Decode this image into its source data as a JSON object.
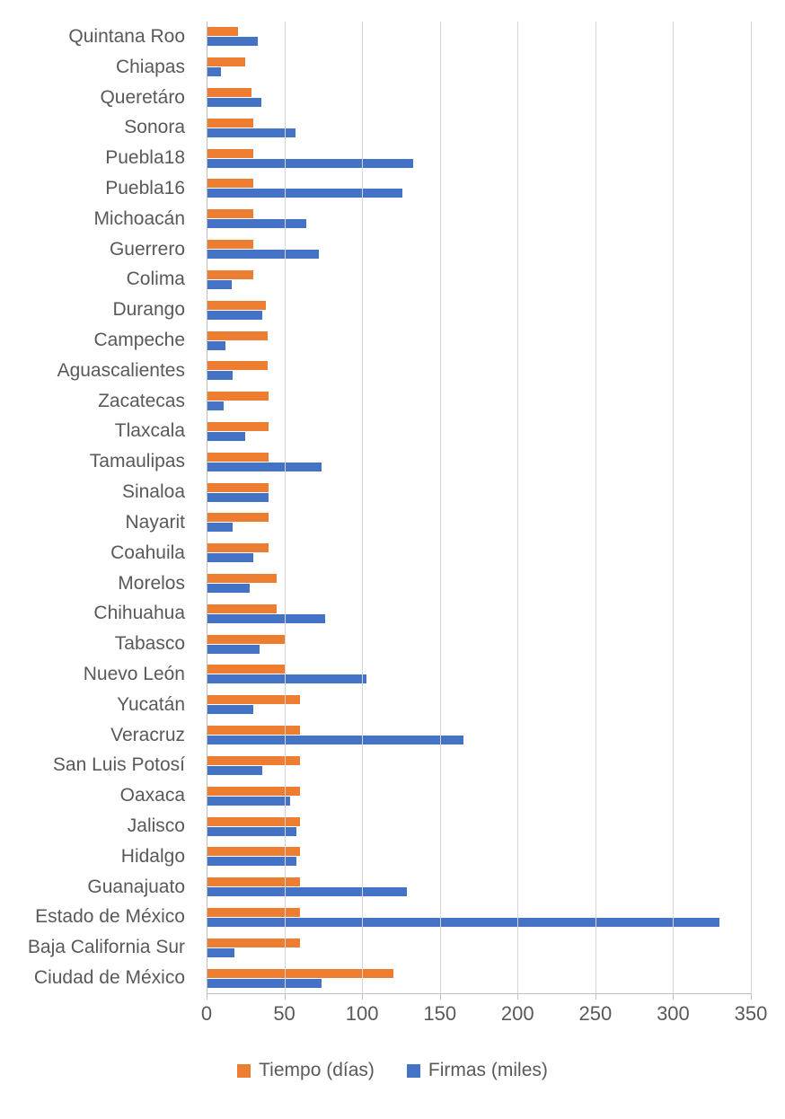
{
  "chart_data": {
    "type": "bar",
    "orientation": "horizontal",
    "title": "",
    "xlabel": "",
    "ylabel": "",
    "xlim": [
      0,
      350
    ],
    "xticks": [
      0,
      50,
      100,
      150,
      200,
      250,
      300,
      350
    ],
    "grid": true,
    "legend_position": "bottom",
    "categories": [
      "Quintana Roo",
      "Chiapas",
      "Queretáro",
      "Sonora",
      "Puebla18",
      "Puebla16",
      "Michoacán",
      "Guerrero",
      "Colima",
      "Durango",
      "Campeche",
      "Aguascalientes",
      "Zacatecas",
      "Tlaxcala",
      "Tamaulipas",
      "Sinaloa",
      "Nayarit",
      "Coahuila",
      "Morelos",
      "Chihuahua",
      "Tabasco",
      "Nuevo León",
      "Yucatán",
      "Veracruz",
      "San Luis Potosí",
      "Oaxaca",
      "Jalisco",
      "Hidalgo",
      "Guanajuato",
      "Estado de México",
      "Baja California Sur",
      "Ciudad de México"
    ],
    "series": [
      {
        "name": "Tiempo (días)",
        "color": "#ED7D31",
        "values": [
          20,
          25,
          29,
          30,
          30,
          30,
          30,
          30,
          30,
          38,
          39,
          39,
          40,
          40,
          40,
          40,
          40,
          40,
          45,
          45,
          50,
          50,
          60,
          60,
          60,
          60,
          60,
          60,
          60,
          60,
          60,
          120
        ]
      },
      {
        "name": "Firmas (miles)",
        "color": "#4472C4",
        "values": [
          33,
          9,
          35,
          57,
          133,
          126,
          64,
          72,
          16,
          36,
          12,
          17,
          11,
          25,
          74,
          40,
          17,
          30,
          28,
          76,
          34,
          103,
          30,
          165,
          36,
          54,
          58,
          58,
          129,
          330,
          18,
          74
        ]
      }
    ]
  },
  "legend": {
    "items": [
      {
        "label": "Tiempo (días)",
        "color": "#ED7D31"
      },
      {
        "label": "Firmas (miles)",
        "color": "#4472C4"
      }
    ]
  },
  "style": {
    "text_color": "#595959",
    "gridline_color": "#D6D6D6",
    "axis_color": "#BFBFBF",
    "background": "#FFFFFF"
  }
}
